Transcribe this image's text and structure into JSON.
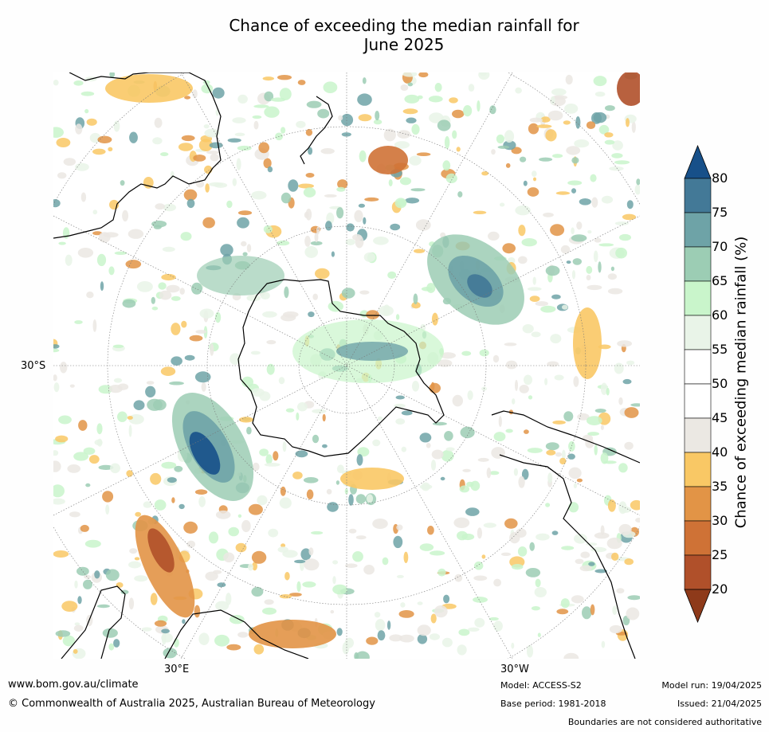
{
  "title": {
    "line1": "Chance of exceeding the median rainfall for",
    "line2": "June 2025"
  },
  "map": {
    "projection": "south-polar-stereographic",
    "lat_labels": [
      "30°S"
    ],
    "lon_labels": [
      "30°E",
      "30°W"
    ],
    "colors": {
      "c20": "#8e3a1a",
      "c25": "#b0502a",
      "c30": "#cf7236",
      "c35": "#e29446",
      "c40": "#f9c865",
      "c45": "#ebe8e3",
      "c50": "#ffffff",
      "c55": "#ffffff",
      "c60": "#e9f4e8",
      "c65": "#c9f5cb",
      "c70": "#9ccdb4",
      "c75": "#6ea3a7",
      "c80": "#437997",
      "c85": "#175089"
    }
  },
  "colorbar": {
    "label": "Chance of exceeding median rainfall (%)",
    "ticks": [
      "80",
      "75",
      "70",
      "65",
      "60",
      "55",
      "50",
      "45",
      "40",
      "35",
      "30",
      "25",
      "20"
    ],
    "bins": [
      {
        "range": "above 80",
        "color": "#175089"
      },
      {
        "range": "75-80",
        "color": "#437997"
      },
      {
        "range": "70-75",
        "color": "#6ea3a7"
      },
      {
        "range": "65-70",
        "color": "#9ccdb4"
      },
      {
        "range": "60-65",
        "color": "#c9f5cb"
      },
      {
        "range": "55-60",
        "color": "#e9f4e8"
      },
      {
        "range": "50-55",
        "color": "#ffffff"
      },
      {
        "range": "45-50",
        "color": "#ffffff"
      },
      {
        "range": "40-45",
        "color": "#ebe8e3"
      },
      {
        "range": "35-40",
        "color": "#f9c865"
      },
      {
        "range": "30-35",
        "color": "#e29446"
      },
      {
        "range": "25-30",
        "color": "#cf7236"
      },
      {
        "range": "20-25",
        "color": "#b0502a"
      },
      {
        "range": "below 20",
        "color": "#8e3a1a"
      }
    ]
  },
  "footer": {
    "website": "www.bom.gov.au/climate",
    "copyright": "© Commonwealth of Australia 2025, Australian Bureau of Meteorology",
    "model": "Model: ACCESS-S2",
    "base_period": "Base period: 1981-2018",
    "model_run": "Model run: 19/04/2025",
    "issued": "Issued: 21/04/2025",
    "disclaimer": "Boundaries are not considered authoritative"
  }
}
